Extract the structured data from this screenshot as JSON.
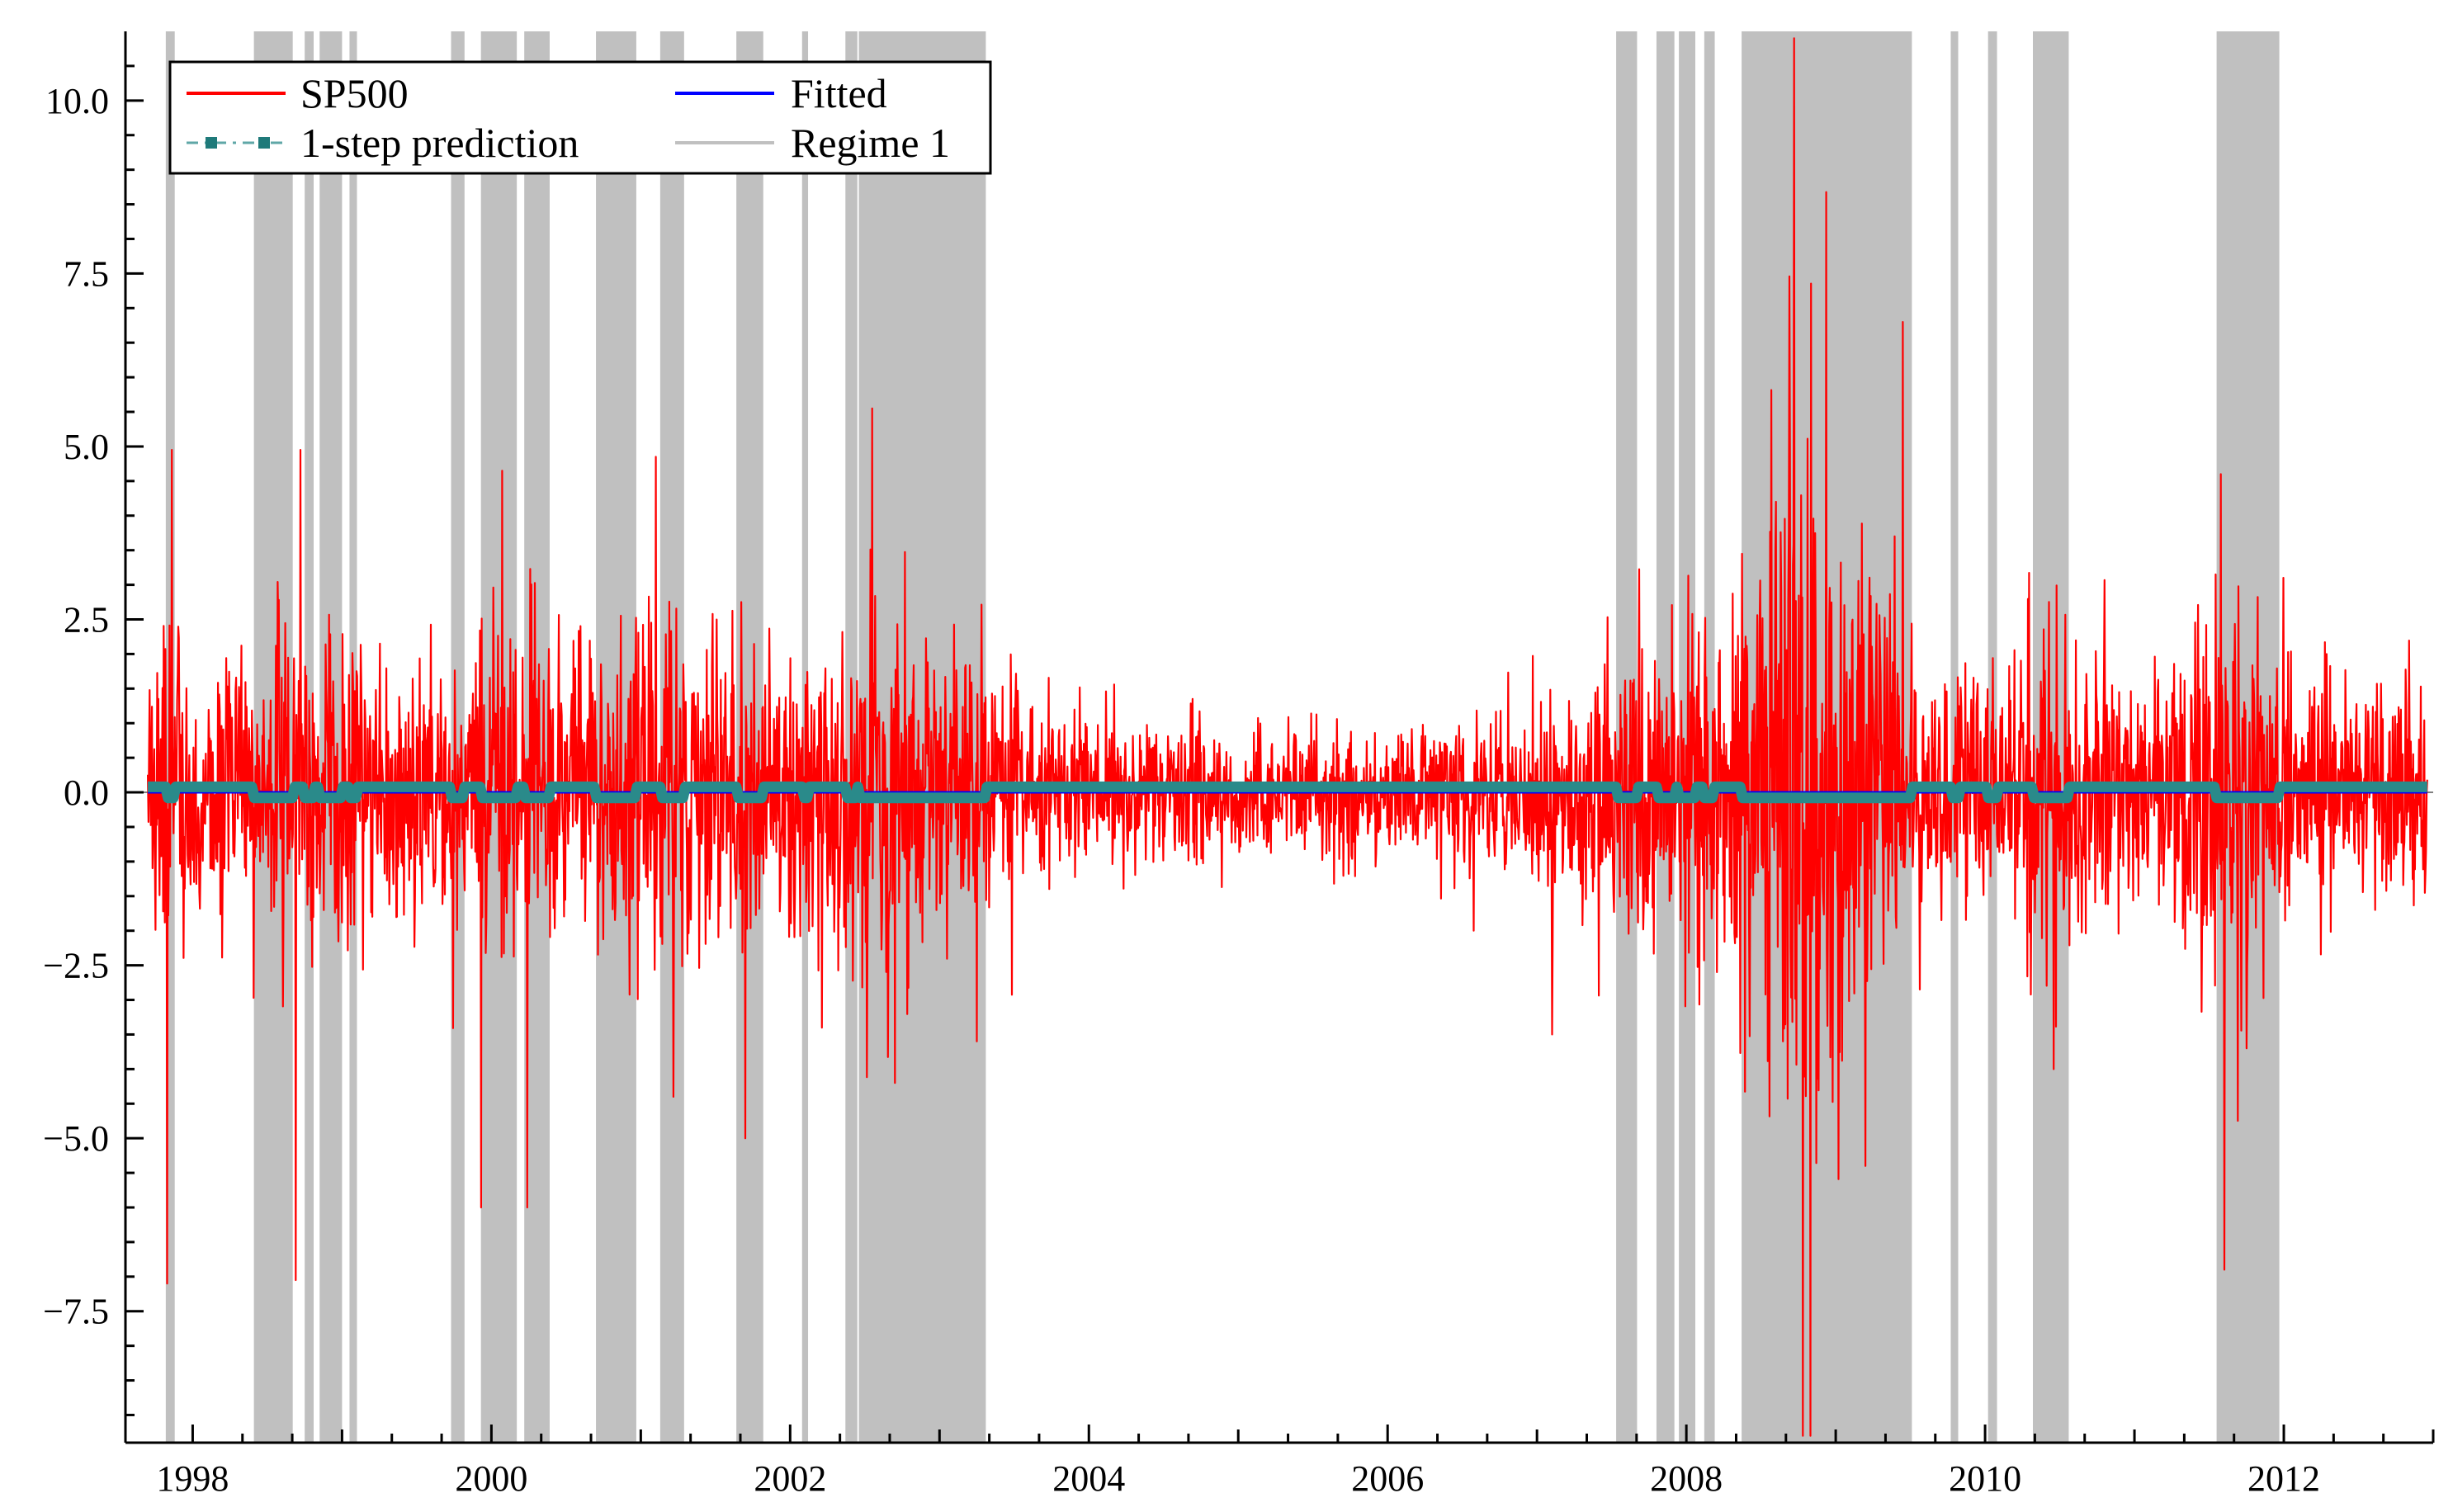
{
  "chart_data": {
    "type": "line",
    "title": "",
    "xlabel": "",
    "ylabel": "",
    "xlim": [
      1997.55,
      2013.0
    ],
    "ylim": [
      -9.4,
      11.0
    ],
    "x_ticks": [
      "1998",
      "2000",
      "2002",
      "2004",
      "2006",
      "2008",
      "2010",
      "2012"
    ],
    "x_tick_values": [
      1998,
      2000,
      2002,
      2004,
      2006,
      2008,
      2010,
      2012
    ],
    "y_ticks": [
      "10.0",
      "7.5",
      "5.0",
      "2.5",
      "0.0",
      "−2.5",
      "−5.0",
      "−7.5"
    ],
    "y_tick_values": [
      10,
      7.5,
      5,
      2.5,
      0,
      -2.5,
      -5,
      -7.5
    ],
    "grid": false,
    "legend": {
      "placement": "top-left",
      "entries": [
        "SP500",
        "Fitted",
        "1-step prediction",
        "Regime 1"
      ]
    },
    "colors": {
      "sp500": "#ff0000",
      "fitted": "#0000ff",
      "prediction": "#2a8a8a",
      "regime": "#c0c0c0"
    },
    "regime_1_periods": [
      [
        1997.82,
        1997.88
      ],
      [
        1998.41,
        1998.67
      ],
      [
        1998.75,
        1998.81
      ],
      [
        1998.85,
        1999.0
      ],
      [
        1999.05,
        1999.1
      ],
      [
        1999.73,
        1999.82
      ],
      [
        1999.93,
        2000.17
      ],
      [
        2000.22,
        2000.39
      ],
      [
        2000.7,
        2000.97
      ],
      [
        2001.13,
        2001.29
      ],
      [
        2001.64,
        2001.82
      ],
      [
        2002.08,
        2002.12
      ],
      [
        2002.37,
        2002.45
      ],
      [
        2002.46,
        2003.31
      ],
      [
        2007.53,
        2007.67
      ],
      [
        2007.8,
        2007.92
      ],
      [
        2007.95,
        2008.06
      ],
      [
        2008.12,
        2008.19
      ],
      [
        2008.37,
        2009.51
      ],
      [
        2009.77,
        2009.82
      ],
      [
        2010.02,
        2010.08
      ],
      [
        2010.32,
        2010.56
      ],
      [
        2011.55,
        2011.97
      ]
    ],
    "series": [
      {
        "name": "SP500",
        "volatility_profile": {
          "x": [
            1997.7,
            1997.85,
            1998.0,
            1998.3,
            1998.6,
            1998.9,
            1999.2,
            1999.6,
            2000.0,
            2000.3,
            2000.6,
            2001.0,
            2001.3,
            2001.7,
            2002.0,
            2002.4,
            2002.7,
            2003.0,
            2003.3,
            2003.7,
            2004.0,
            2004.5,
            2005.0,
            2005.5,
            2006.0,
            2006.5,
            2007.0,
            2007.3,
            2007.6,
            2008.0,
            2008.4,
            2008.75,
            2009.0,
            2009.3,
            2009.6,
            2010.0,
            2010.4,
            2010.7,
            2011.0,
            2011.4,
            2011.7,
            2012.0,
            2012.5,
            2013.0
          ],
          "scale": [
            0.85,
            1.5,
            0.85,
            0.9,
            1.3,
            1.2,
            1.0,
            1.1,
            1.2,
            1.25,
            1.1,
            1.3,
            1.2,
            1.2,
            1.05,
            1.6,
            1.7,
            1.2,
            1.0,
            0.7,
            0.65,
            0.58,
            0.5,
            0.52,
            0.55,
            0.6,
            0.65,
            0.85,
            1.1,
            1.2,
            1.6,
            3.0,
            2.4,
            1.6,
            1.0,
            0.85,
            1.3,
            1.0,
            0.8,
            1.3,
            1.6,
            0.95,
            0.75,
            0.75
          ]
        },
        "peaks": [
          [
            1997.86,
            4.95
          ],
          [
            1997.83,
            -7.1
          ],
          [
            1998.72,
            4.95
          ],
          [
            1998.69,
            -7.05
          ],
          [
            1999.93,
            -6.0
          ],
          [
            2000.07,
            4.65
          ],
          [
            2000.24,
            -6.0
          ],
          [
            2001.1,
            4.85
          ],
          [
            2001.22,
            -4.4
          ],
          [
            2001.7,
            -5.0
          ],
          [
            2002.55,
            5.55
          ],
          [
            2002.7,
            -4.2
          ],
          [
            2003.25,
            -3.6
          ],
          [
            2007.1,
            -3.5
          ],
          [
            2008.6,
            4.2
          ],
          [
            2008.72,
            10.9
          ],
          [
            2008.78,
            -9.3
          ],
          [
            2008.83,
            -9.3
          ],
          [
            2009.45,
            6.8
          ],
          [
            2009.2,
            -5.4
          ],
          [
            2010.46,
            -4.0
          ],
          [
            2011.58,
            4.6
          ],
          [
            2011.6,
            -6.9
          ],
          [
            2011.75,
            -3.7
          ]
        ]
      },
      {
        "name": "Fitted",
        "y": 0.0
      },
      {
        "name": "1-step prediction",
        "levels": {
          "regime_1": -0.08,
          "other": 0.08
        }
      }
    ]
  }
}
